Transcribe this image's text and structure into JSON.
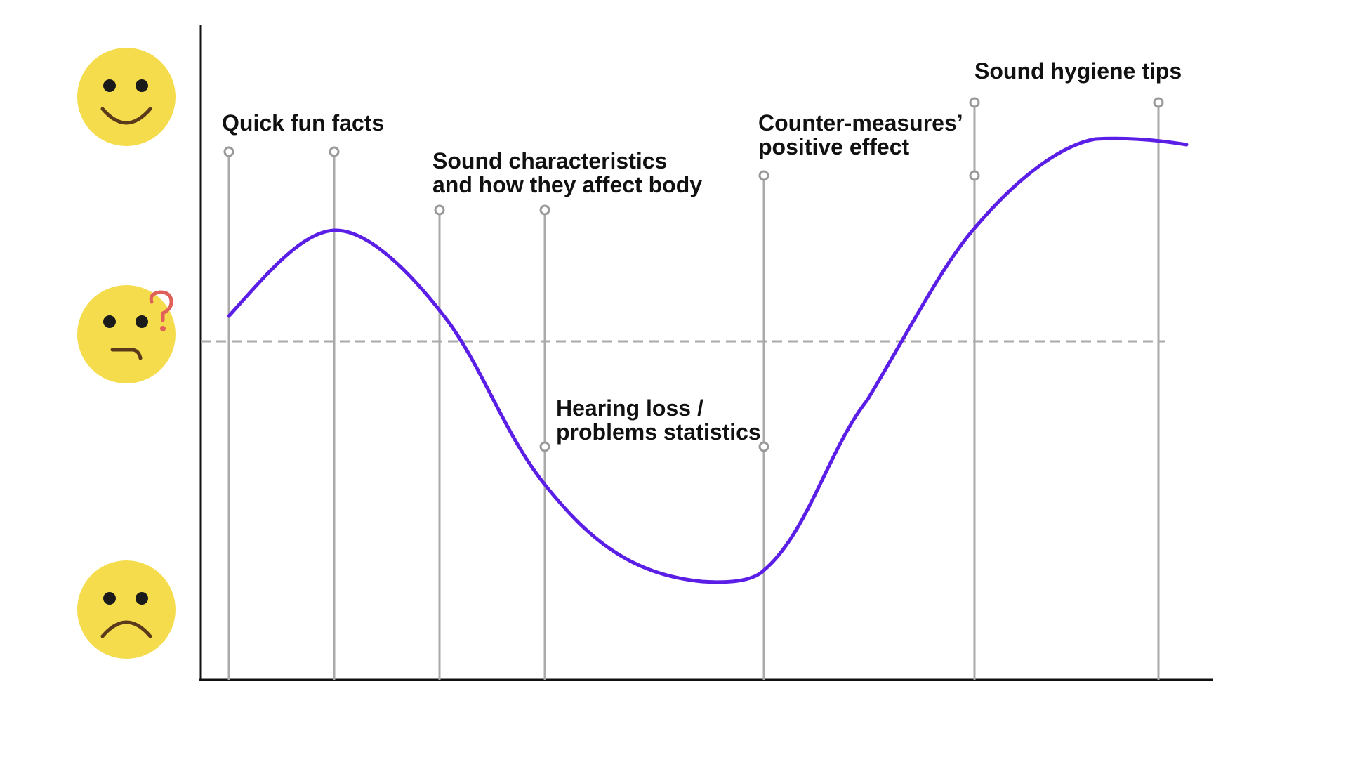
{
  "diagram": {
    "segments": [
      {
        "id": "quick-fun-facts",
        "lines": [
          "Quick fun facts"
        ]
      },
      {
        "id": "sound-characteristics",
        "lines": [
          "Sound characteristics",
          "and how they affect body"
        ]
      },
      {
        "id": "hearing-loss",
        "lines": [
          "Hearing loss /",
          "problems statistics"
        ]
      },
      {
        "id": "counter-measures",
        "lines": [
          "Counter-measures’",
          "positive effect"
        ]
      },
      {
        "id": "sound-hygiene",
        "lines": [
          "Sound hygiene tips"
        ]
      }
    ],
    "faces": [
      {
        "mood": "happy",
        "icon": "happy-face-icon"
      },
      {
        "mood": "confused",
        "icon": "confused-face-icon"
      },
      {
        "mood": "sad",
        "icon": "sad-face-icon"
      }
    ],
    "colors": {
      "curve": "#5b1ee6",
      "marker_line": "#aaaaaa",
      "baseline": "#aaaaaa",
      "axis": "#111111",
      "face": "#f5dc4c",
      "face_features": "#1a1a1a",
      "mouth": "#5a3a1a",
      "question_mark": "#e0605a"
    }
  }
}
